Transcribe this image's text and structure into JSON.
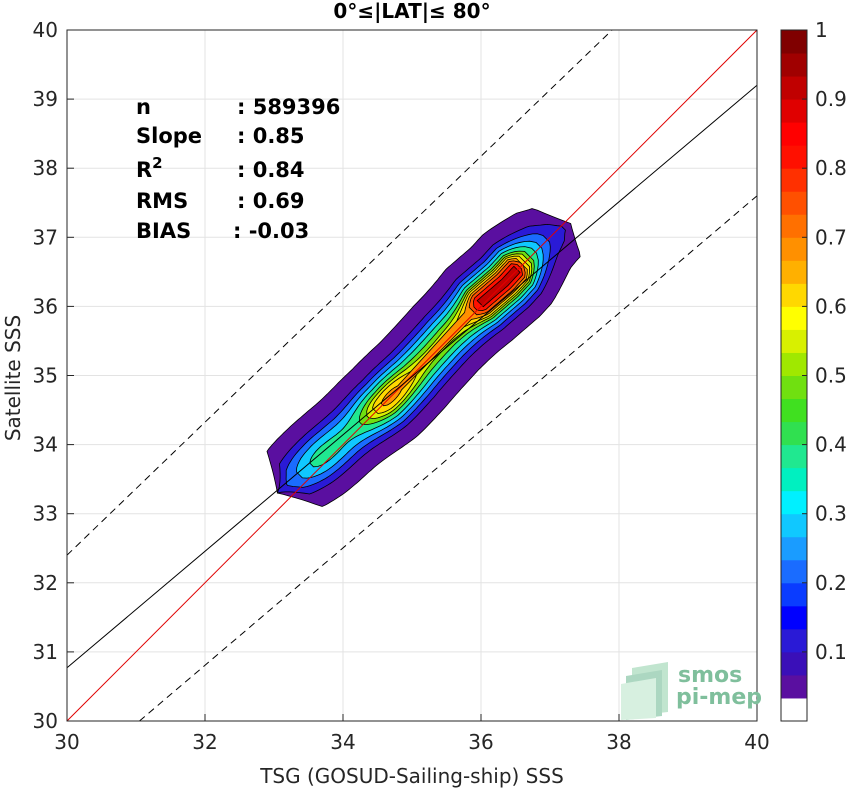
{
  "chart_data": {
    "type": "heatmap",
    "title": "0°≤|LAT|≤ 80°",
    "xlabel": "TSG (GOSUD-Sailing-ship) SSS",
    "ylabel": "Satellite SSS",
    "xlim": [
      30,
      40
    ],
    "ylim": [
      30,
      40
    ],
    "xticks": [
      "30",
      "32",
      "34",
      "36",
      "38",
      "40"
    ],
    "yticks": [
      "30",
      "31",
      "32",
      "33",
      "34",
      "35",
      "36",
      "37",
      "38",
      "39",
      "40"
    ],
    "grid": true,
    "colorbar": {
      "range": [
        0,
        1
      ],
      "ticks": [
        "0.1",
        "0.2",
        "0.3",
        "0.4",
        "0.5",
        "0.6",
        "0.7",
        "0.8",
        "0.9",
        "1"
      ],
      "colors": [
        "#ffffff",
        "#5a0fa0",
        "#3a0fb8",
        "#2a1ad6",
        "#0000ff",
        "#0a3cff",
        "#1a6cff",
        "#1a9cff",
        "#10c8ff",
        "#00f0ff",
        "#00f0c0",
        "#20e890",
        "#30e050",
        "#40e020",
        "#70e010",
        "#a0e800",
        "#d8f000",
        "#ffff00",
        "#ffd800",
        "#ffb000",
        "#ff9000",
        "#ff7000",
        "#ff5000",
        "#ff3000",
        "#ff1000",
        "#ff0000",
        "#e00000",
        "#c00000",
        "#a00000",
        "#800000"
      ]
    },
    "stats": [
      {
        "label": "n",
        "value": ": 589396",
        "sup": ""
      },
      {
        "label": "Slope",
        "value": ": 0.85",
        "sup": ""
      },
      {
        "label": "R",
        "value": ": 0.84",
        "sup": "2"
      },
      {
        "label": "RMS",
        "value": ": 0.69",
        "sup": ""
      },
      {
        "label": "BIAS",
        "value": ": -0.03",
        "sup": ""
      }
    ],
    "lines": {
      "identity": {
        "x": [
          30,
          40
        ],
        "y": [
          30,
          40
        ],
        "color": "#e00000"
      },
      "fit": {
        "x": [
          30,
          40
        ],
        "y": [
          30.77,
          39.2
        ],
        "color": "#000000"
      },
      "upper_bound": {
        "x": [
          30,
          37.9
        ],
        "y": [
          32.4,
          40
        ],
        "color": "#000000",
        "style": "dashed"
      },
      "lower_bound": {
        "x": [
          31.05,
          40
        ],
        "y": [
          30,
          37.6
        ],
        "color": "#000000",
        "style": "dashed"
      }
    },
    "density": {
      "ridge": [
        [
          33.05,
          33.3
        ],
        [
          33.6,
          33.75
        ],
        [
          34.0,
          34.1
        ],
        [
          34.6,
          34.6
        ],
        [
          35.0,
          35.0
        ],
        [
          35.5,
          35.55
        ],
        [
          36.0,
          36.05
        ],
        [
          36.35,
          36.35
        ],
        [
          36.9,
          36.95
        ],
        [
          37.3,
          37.2
        ]
      ],
      "levels": [
        {
          "value": 0.05,
          "color": "#5a0fa0"
        },
        {
          "value": 0.15,
          "color": "#2a1ad6"
        },
        {
          "value": 0.25,
          "color": "#1a6cff"
        },
        {
          "value": 0.35,
          "color": "#10c8ff"
        },
        {
          "value": 0.45,
          "color": "#20e890"
        },
        {
          "value": 0.55,
          "color": "#70e010"
        },
        {
          "value": 0.62,
          "color": "#d8f000"
        },
        {
          "value": 0.68,
          "color": "#ffd800"
        },
        {
          "value": 0.75,
          "color": "#ff9000"
        },
        {
          "value": 0.82,
          "color": "#ff5000"
        },
        {
          "value": 0.9,
          "color": "#ff1000"
        },
        {
          "value": 0.97,
          "color": "#c00000"
        }
      ]
    }
  },
  "logo": {
    "line1": "smos",
    "line2": "pi-mep"
  }
}
